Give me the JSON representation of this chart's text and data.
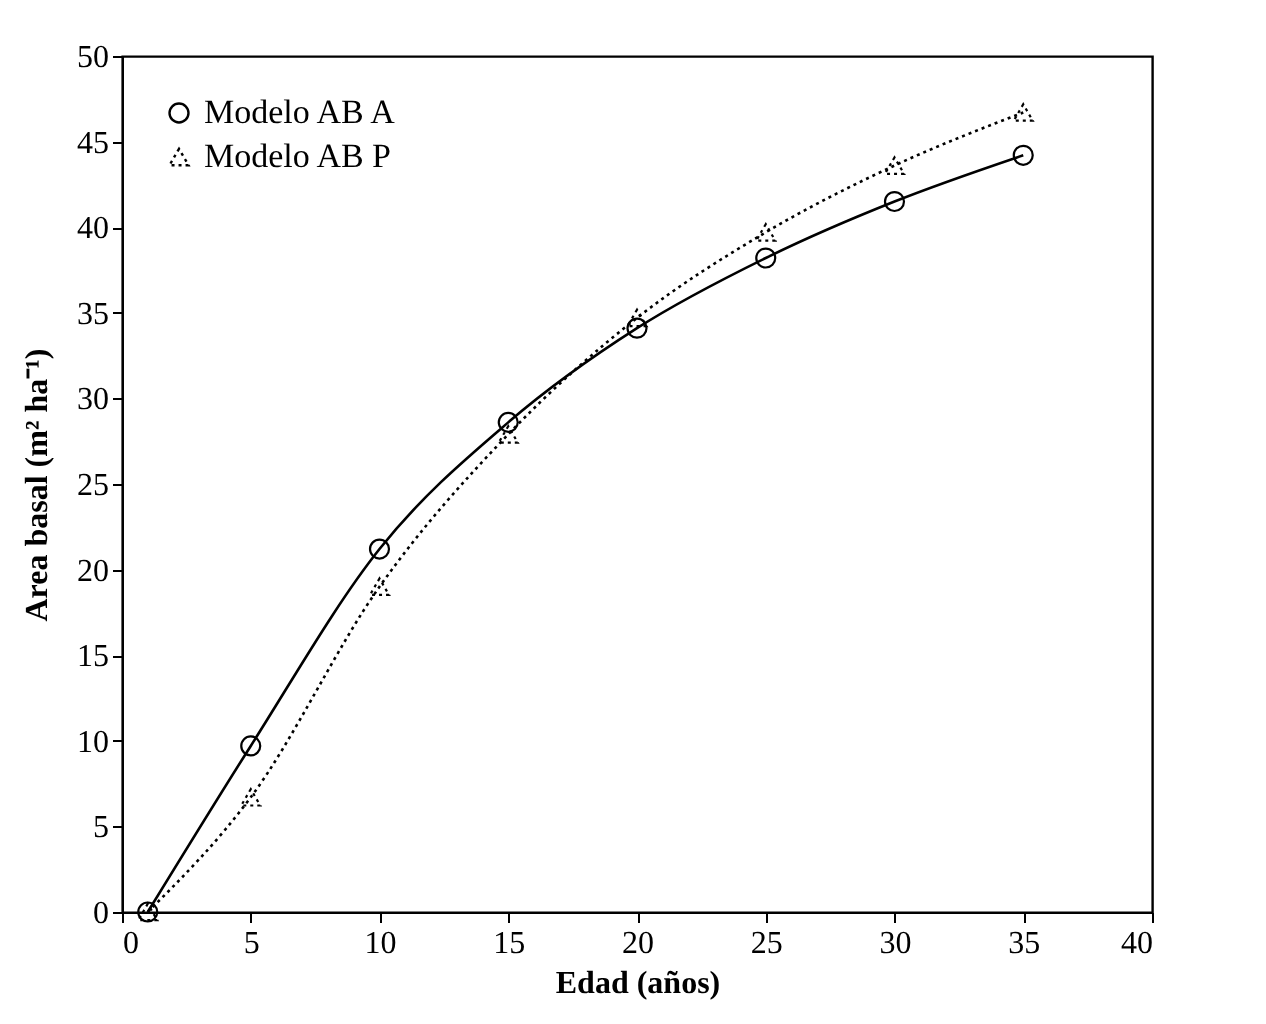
{
  "chart_data": {
    "type": "line",
    "xlabel": "Edad (años)",
    "ylabel": "Area basal (m² ha⁻¹)",
    "x": [
      1,
      5,
      10,
      15,
      20,
      25,
      30,
      35
    ],
    "series": [
      {
        "name": "Modelo AB A",
        "color": "#000000",
        "marker": "circle",
        "line_style": "solid",
        "values": [
          0,
          9.7,
          21.2,
          28.6,
          34.1,
          38.2,
          41.5,
          44.2
        ]
      },
      {
        "name": "Modelo AB P",
        "color": "#000000",
        "marker": "triangle",
        "line_style": "dotted",
        "values": [
          0,
          6.7,
          19.0,
          27.9,
          34.7,
          39.7,
          43.6,
          46.7
        ]
      }
    ],
    "xlim": [
      0,
      40
    ],
    "xticks": [
      0,
      5,
      10,
      15,
      20,
      25,
      30,
      35,
      40
    ],
    "ylim": [
      0,
      50
    ],
    "yticks": [
      0,
      5,
      10,
      15,
      20,
      25,
      30,
      35,
      40,
      45,
      50
    ],
    "grid": false,
    "legend": "top left"
  }
}
